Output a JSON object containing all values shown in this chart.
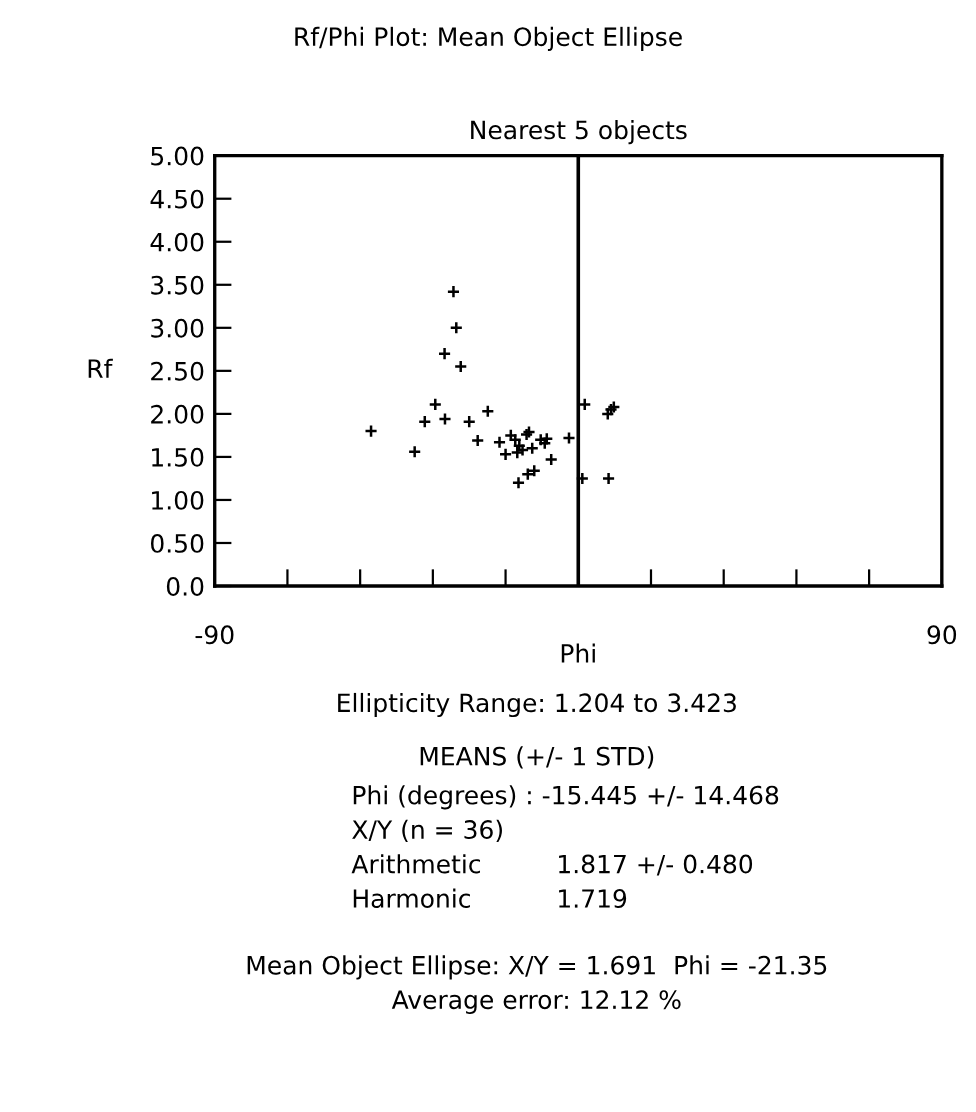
{
  "chart_data": {
    "type": "scatter",
    "title": "Rf/Phi Plot: Mean Object Ellipse",
    "subtitle": "Nearest 5 objects",
    "xlabel": "Phi",
    "ylabel": "Rf",
    "x": [
      -51.3,
      -40.5,
      -38.0,
      -35.4,
      -33.0,
      -33.1,
      -30.9,
      -30.2,
      -29.1,
      -27.0,
      -24.9,
      -22.4,
      -19.5,
      -18.0,
      -16.7,
      -15.1,
      -14.8,
      -14.6,
      -12.8,
      -12.2,
      -12.5,
      -10.9,
      -11.4,
      -9.3,
      -8.3,
      -6.7,
      -2.3,
      1.0,
      1.6,
      7.5,
      7.3,
      8.8,
      -13.8,
      -7.8,
      8.1,
      -15.6
    ],
    "values": [
      1.8,
      1.56,
      1.91,
      2.11,
      1.94,
      2.7,
      3.42,
      3.0,
      2.55,
      1.91,
      1.69,
      2.03,
      1.67,
      1.53,
      1.75,
      1.55,
      1.2,
      1.63,
      1.76,
      1.79,
      1.3,
      1.34,
      1.6,
      1.7,
      1.66,
      1.47,
      1.72,
      1.25,
      2.11,
      1.25,
      2.0,
      2.08,
      1.58,
      1.71,
      2.05,
      1.7
    ],
    "color": "#000000",
    "marker": "cross",
    "grid": false,
    "xlim": [
      -90,
      90
    ],
    "xticks": [
      {
        "value": -90,
        "label": "-90"
      },
      {
        "value": -72,
        "label": null
      },
      {
        "value": -54,
        "label": null
      },
      {
        "value": -36,
        "label": null
      },
      {
        "value": -18,
        "label": null
      },
      {
        "value": 0,
        "label": null
      },
      {
        "value": 18,
        "label": null
      },
      {
        "value": 36,
        "label": null
      },
      {
        "value": 54,
        "label": null
      },
      {
        "value": 72,
        "label": null
      },
      {
        "value": 90,
        "label": "90"
      }
    ],
    "ylim": [
      0,
      5
    ],
    "yticks": [
      {
        "value": 0,
        "label": "0.0"
      },
      {
        "value": 0.5,
        "label": "0.50"
      },
      {
        "value": 1,
        "label": "1.00"
      },
      {
        "value": 1.5,
        "label": "1.50"
      },
      {
        "value": 2,
        "label": "2.00"
      },
      {
        "value": 2.5,
        "label": "2.50"
      },
      {
        "value": 3,
        "label": "3.00"
      },
      {
        "value": 3.5,
        "label": "3.50"
      },
      {
        "value": 4,
        "label": "4.00"
      },
      {
        "value": 4.5,
        "label": "4.50"
      },
      {
        "value": 5,
        "label": "5.00"
      }
    ],
    "ref_lines": [
      {
        "axis": "x",
        "value": 0,
        "color": "#000000"
      }
    ],
    "annotations": [
      "Ellipticity Range: 1.204 to 3.423",
      "MEANS (+/- 1 STD)",
      "Phi (degrees) : -15.445 +/- 14.468",
      "X/Y (n = 36)",
      "Arithmetic",
      "1.817 +/- 0.480",
      "Harmonic",
      "1.719",
      "Mean Object Ellipse: X/Y = 1.691  Phi = -21.35",
      "Average error: 12.12 %"
    ]
  }
}
